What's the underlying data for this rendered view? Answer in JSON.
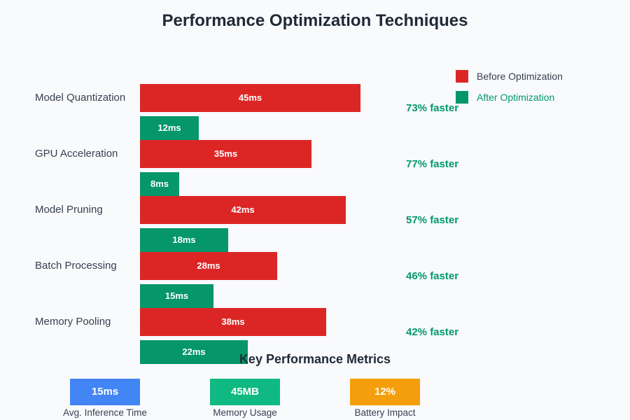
{
  "chart_data": {
    "type": "bar",
    "orientation": "horizontal",
    "title": "Performance Optimization Techniques",
    "categories": [
      "Model Quantization",
      "GPU Acceleration",
      "Model Pruning",
      "Batch Processing",
      "Memory Pooling"
    ],
    "unit": "ms",
    "series": [
      {
        "name": "Before Optimization",
        "color": "#dc2626",
        "label_color": "#374151",
        "values": [
          45,
          35,
          42,
          28,
          38
        ],
        "labels": [
          "45ms",
          "35ms",
          "42ms",
          "28ms",
          "38ms"
        ]
      },
      {
        "name": "After Optimization",
        "color": "#059669",
        "label_color": "#059669",
        "values": [
          12,
          8,
          18,
          15,
          22
        ],
        "labels": [
          "12ms",
          "8ms",
          "18ms",
          "15ms",
          "22ms"
        ]
      }
    ],
    "improvement_labels": [
      "73% faster",
      "77% faster",
      "57% faster",
      "46% faster",
      "42% faster"
    ],
    "xlim": [
      0,
      50
    ],
    "grid": false,
    "legend_position": "top-right"
  },
  "metrics": {
    "title": "Key Performance Metrics",
    "items": [
      {
        "value": "15ms",
        "label": "Avg. Inference Time",
        "color": "#4285f4"
      },
      {
        "value": "45MB",
        "label": "Memory Usage",
        "color": "#10b981"
      },
      {
        "value": "12%",
        "label": "Battery Impact",
        "color": "#f59e0b"
      }
    ]
  }
}
